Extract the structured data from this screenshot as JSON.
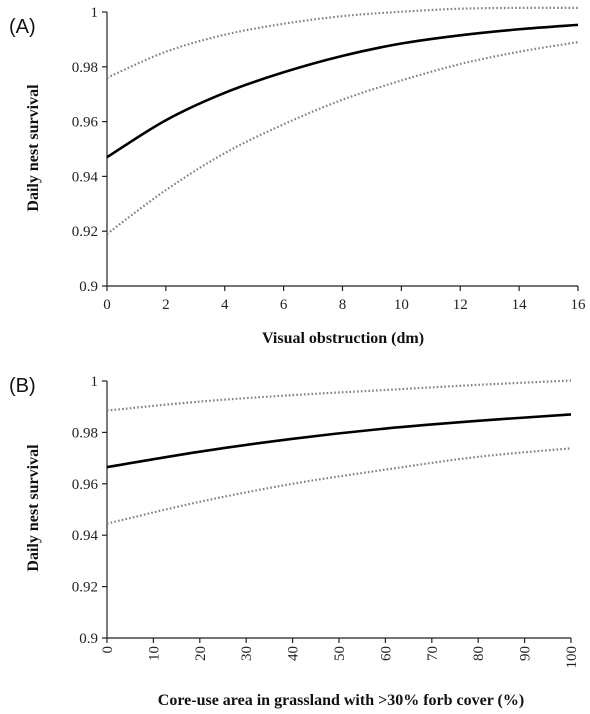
{
  "chart_data": [
    {
      "panel_label": "(A)",
      "type": "line",
      "xlabel": "Visual obstruction (dm)",
      "ylabel": "Daily nest survival",
      "xlim": [
        0,
        16
      ],
      "ylim": [
        0.9,
        1.0
      ],
      "x_ticks": [
        "0",
        "2",
        "4",
        "6",
        "8",
        "10",
        "12",
        "14",
        "16"
      ],
      "y_ticks": [
        "0.9",
        "0.92",
        "0.94",
        "0.96",
        "0.98",
        "1"
      ],
      "x_tick_rotation": "horizontal",
      "grid": false,
      "legend": "none",
      "series": [
        {
          "role": "estimate",
          "style": "solid",
          "color": "#000000",
          "x": [
            0,
            2,
            4,
            6,
            8,
            10,
            12,
            14,
            16
          ],
          "y": [
            0.947,
            0.9605,
            0.9705,
            0.978,
            0.984,
            0.9885,
            0.9915,
            0.9937,
            0.9953
          ]
        },
        {
          "role": "upper",
          "style": "dotted",
          "color": "#808080",
          "x": [
            0,
            2,
            4,
            6,
            8,
            10,
            12,
            14,
            16
          ],
          "y": [
            0.976,
            0.9855,
            0.9917,
            0.9957,
            0.9985,
            1.0001,
            1.0012,
            1.0015,
            1.0015
          ]
        },
        {
          "role": "lower",
          "style": "dotted",
          "color": "#808080",
          "x": [
            0,
            2,
            4,
            6,
            8,
            10,
            12,
            14,
            16
          ],
          "y": [
            0.919,
            0.935,
            0.9485,
            0.959,
            0.968,
            0.975,
            0.981,
            0.9855,
            0.989
          ]
        }
      ]
    },
    {
      "panel_label": "(B)",
      "type": "line",
      "xlabel": "Core-use area in grassland with >30% forb cover (%)",
      "ylabel": "Daily nest survival",
      "xlim": [
        0,
        100
      ],
      "ylim": [
        0.9,
        1.0
      ],
      "x_ticks": [
        "0",
        "10",
        "20",
        "30",
        "40",
        "50",
        "60",
        "70",
        "80",
        "90",
        "100"
      ],
      "y_ticks": [
        "0.9",
        "0.92",
        "0.94",
        "0.96",
        "0.98",
        "1"
      ],
      "x_tick_rotation": "vertical",
      "grid": false,
      "legend": "none",
      "series": [
        {
          "role": "estimate",
          "style": "solid",
          "color": "#000000",
          "x": [
            0,
            20,
            40,
            60,
            80,
            100
          ],
          "y": [
            0.9665,
            0.9725,
            0.9775,
            0.9815,
            0.9845,
            0.987
          ]
        },
        {
          "role": "upper",
          "style": "dotted",
          "color": "#808080",
          "x": [
            0,
            20,
            40,
            60,
            80,
            100
          ],
          "y": [
            0.9885,
            0.992,
            0.9945,
            0.9965,
            0.9985,
            1.0002
          ]
        },
        {
          "role": "lower",
          "style": "dotted",
          "color": "#808080",
          "x": [
            0,
            20,
            40,
            60,
            80,
            100
          ],
          "y": [
            0.9445,
            0.953,
            0.96,
            0.9655,
            0.9705,
            0.9738
          ]
        }
      ]
    }
  ]
}
